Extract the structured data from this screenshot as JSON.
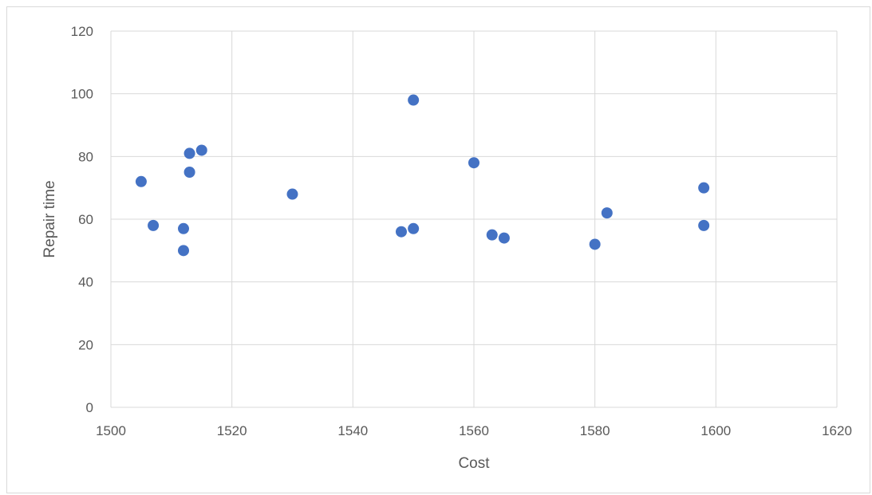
{
  "chart_data": {
    "type": "scatter",
    "title": "",
    "xlabel": "Cost",
    "ylabel": "Repair time",
    "xlim": [
      1500,
      1620
    ],
    "ylim": [
      0,
      120
    ],
    "x_ticks": [
      1500,
      1520,
      1540,
      1560,
      1580,
      1600,
      1620
    ],
    "y_ticks": [
      0,
      20,
      40,
      60,
      80,
      100,
      120
    ],
    "grid": true,
    "legend": "none",
    "marker_color": "#4472c4",
    "series": [
      {
        "points": [
          {
            "x": 1505,
            "y": 72
          },
          {
            "x": 1507,
            "y": 58
          },
          {
            "x": 1512,
            "y": 57
          },
          {
            "x": 1512,
            "y": 50
          },
          {
            "x": 1513,
            "y": 81
          },
          {
            "x": 1513,
            "y": 75
          },
          {
            "x": 1515,
            "y": 82
          },
          {
            "x": 1530,
            "y": 68
          },
          {
            "x": 1548,
            "y": 56
          },
          {
            "x": 1550,
            "y": 98
          },
          {
            "x": 1550,
            "y": 57
          },
          {
            "x": 1560,
            "y": 78
          },
          {
            "x": 1563,
            "y": 55
          },
          {
            "x": 1565,
            "y": 54
          },
          {
            "x": 1580,
            "y": 52
          },
          {
            "x": 1582,
            "y": 62
          },
          {
            "x": 1598,
            "y": 70
          },
          {
            "x": 1598,
            "y": 58
          }
        ]
      }
    ]
  }
}
